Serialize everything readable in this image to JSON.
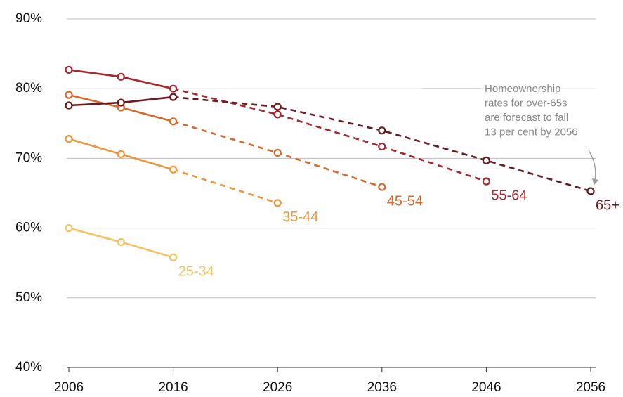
{
  "chart_data": {
    "type": "line",
    "x": [
      2006,
      2011,
      2016,
      2026,
      2036,
      2046,
      2056
    ],
    "xlim": [
      2006,
      2056
    ],
    "xticks": [
      2006,
      2016,
      2026,
      2036,
      2046,
      2056
    ],
    "ylim": [
      40,
      90
    ],
    "yticks": [
      {
        "value": 40,
        "label": "40%"
      },
      {
        "value": 50,
        "label": "50%"
      },
      {
        "value": 60,
        "label": "60%"
      },
      {
        "value": 70,
        "label": "70%"
      },
      {
        "value": 80,
        "label": "80%"
      },
      {
        "value": 90,
        "label": "90%"
      }
    ],
    "grid": true,
    "forecast_from_x": 2016,
    "series": [
      {
        "name": "25-34",
        "color": "#f6c25c",
        "values": [
          60.0,
          58.0,
          55.8,
          null,
          null,
          null,
          null
        ]
      },
      {
        "name": "35-44",
        "color": "#ef953c",
        "values": [
          72.8,
          70.6,
          68.4,
          63.6,
          null,
          null,
          null
        ]
      },
      {
        "name": "45-54",
        "color": "#d9672c",
        "values": [
          79.1,
          77.3,
          75.3,
          70.8,
          65.9,
          null,
          null
        ]
      },
      {
        "name": "55-64",
        "color": "#a8282e",
        "values": [
          82.7,
          81.7,
          80.0,
          76.3,
          71.7,
          66.7,
          null
        ]
      },
      {
        "name": "65+",
        "color": "#6b1b1d",
        "values": [
          77.6,
          78.0,
          78.8,
          77.4,
          74.0,
          69.7,
          65.3
        ]
      }
    ],
    "annotation": [
      "Homeownership",
      "rates for over-65s",
      "are forecast to fall",
      "13 per cent by 2056"
    ]
  }
}
